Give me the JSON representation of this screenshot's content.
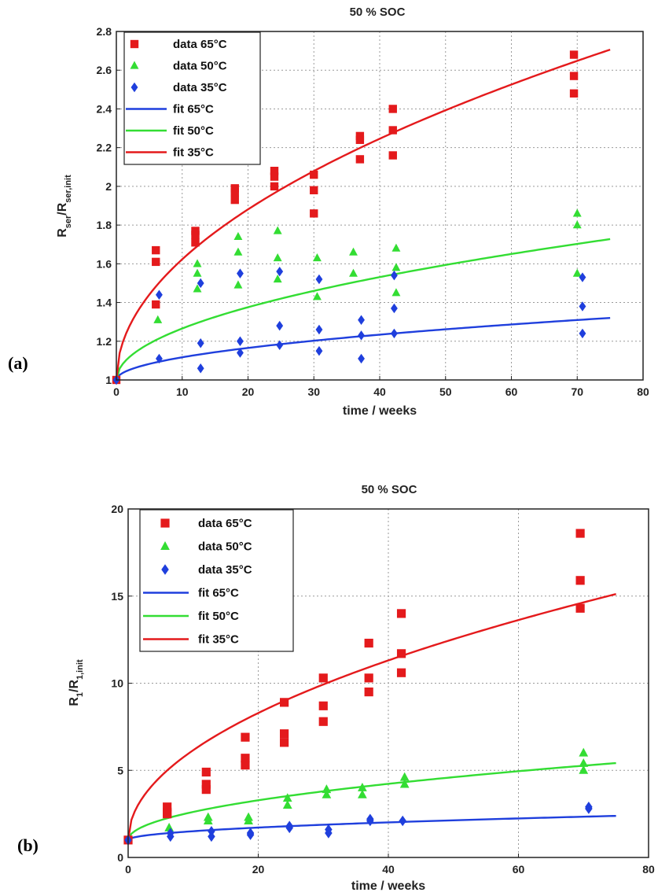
{
  "colors": {
    "red": "#e41a1c",
    "green": "#33dd33",
    "blue": "#1f3fdd"
  },
  "chart_data": [
    {
      "panel_label": "(a)",
      "type": "scatter",
      "title": "50 % SOC",
      "xlabel": "time / weeks",
      "ylabel_main": "R",
      "ylabel_sub1": "ser",
      "ylabel_mid": "/R",
      "ylabel_sub2": "ser,init",
      "xlim": [
        0,
        80
      ],
      "ylim": [
        1,
        2.8
      ],
      "xticks": [
        "0",
        "10",
        "20",
        "30",
        "40",
        "50",
        "60",
        "70",
        "80"
      ],
      "xtick_values": [
        0,
        10,
        20,
        30,
        40,
        50,
        60,
        70,
        80
      ],
      "yticks": [
        "1",
        "1.2",
        "1.4",
        "1.6",
        "1.8",
        "2",
        "2.2",
        "2.4",
        "2.6",
        "2.8"
      ],
      "ytick_values": [
        1,
        1.2,
        1.4,
        1.6,
        1.8,
        2,
        2.2,
        2.4,
        2.6,
        2.8
      ],
      "grid": true,
      "legend_position": "top-left",
      "legend": [
        "data 65°C",
        "data 50°C",
        "data 35°C",
        "fit 65°C",
        "fit 50°C",
        "fit 35°C"
      ],
      "series": [
        {
          "name": "data 65°C",
          "kind": "points",
          "marker": "square",
          "color": "red",
          "x": [
            0,
            6,
            6,
            6,
            12,
            12,
            12,
            18,
            18,
            18,
            24,
            24,
            24,
            30,
            30,
            30,
            37,
            37,
            37,
            42,
            42,
            42,
            69.5,
            69.5,
            69.5
          ],
          "y": [
            1.0,
            1.67,
            1.61,
            1.39,
            1.77,
            1.75,
            1.71,
            1.99,
            1.97,
            1.93,
            2.08,
            2.05,
            2.0,
            2.06,
            1.98,
            1.86,
            2.26,
            2.24,
            2.14,
            2.4,
            2.29,
            2.16,
            2.68,
            2.57,
            2.48
          ]
        },
        {
          "name": "data 50°C",
          "kind": "points",
          "marker": "triangle",
          "color": "green",
          "x": [
            6.3,
            12.3,
            12.3,
            12.3,
            18.5,
            18.5,
            18.5,
            24.5,
            24.5,
            24.5,
            30.5,
            30.5,
            36,
            36,
            42.5,
            42.5,
            42.5,
            70,
            70,
            70
          ],
          "y": [
            1.31,
            1.6,
            1.55,
            1.47,
            1.74,
            1.66,
            1.49,
            1.77,
            1.63,
            1.52,
            1.63,
            1.43,
            1.66,
            1.55,
            1.68,
            1.58,
            1.45,
            1.86,
            1.8,
            1.55
          ],
          "y_first_points": [
            1.31
          ]
        },
        {
          "name": "data 35°C",
          "kind": "points",
          "marker": "diamond",
          "color": "blue",
          "x": [
            0,
            6.5,
            6.5,
            12.8,
            12.8,
            12.8,
            18.8,
            18.8,
            18.8,
            24.8,
            24.8,
            24.8,
            30.8,
            30.8,
            30.8,
            37.2,
            37.2,
            37.2,
            42.2,
            42.2,
            42.2,
            70.8,
            70.8,
            70.8
          ],
          "y": [
            1.0,
            1.44,
            1.11,
            1.5,
            1.19,
            1.06,
            1.55,
            1.2,
            1.14,
            1.56,
            1.28,
            1.18,
            1.52,
            1.26,
            1.15,
            1.31,
            1.23,
            1.11,
            1.54,
            1.37,
            1.24,
            1.53,
            1.38,
            1.24
          ]
        },
        {
          "name": "fit 65°C",
          "kind": "fit",
          "color": "blue",
          "a": 0.037,
          "n": 0.5
        },
        {
          "name": "fit 50°C",
          "kind": "fit",
          "color": "green",
          "a": 0.084,
          "n": 0.5
        },
        {
          "name": "fit 35°C",
          "kind": "fit",
          "color": "red",
          "a": 0.197,
          "n": 0.5
        }
      ]
    },
    {
      "panel_label": "(b)",
      "type": "scatter",
      "title": "50 % SOC",
      "xlabel": "time / weeks",
      "ylabel_main": "R",
      "ylabel_sub1": "1",
      "ylabel_mid": "/R",
      "ylabel_sub2": "1,init",
      "xlim": [
        0,
        80
      ],
      "ylim": [
        0,
        20
      ],
      "xticks": [
        "0",
        "20",
        "40",
        "60",
        "80"
      ],
      "xtick_values": [
        0,
        20,
        40,
        60,
        80
      ],
      "yticks": [
        "0",
        "5",
        "10",
        "15",
        "20"
      ],
      "ytick_values": [
        0,
        5,
        10,
        15,
        20
      ],
      "grid": true,
      "legend_position": "top-left",
      "legend": [
        "data 65°C",
        "data 50°C",
        "data 35°C",
        "fit 65°C",
        "fit 50°C",
        "fit 35°C"
      ],
      "series": [
        {
          "name": "data 65°C",
          "kind": "points",
          "marker": "square",
          "color": "red",
          "x": [
            0,
            6,
            6,
            6,
            12,
            12,
            12,
            18,
            18,
            18,
            24,
            24,
            24,
            30,
            30,
            30,
            37,
            37,
            37,
            42,
            42,
            42,
            69.5,
            69.5,
            69.5
          ],
          "y": [
            1.0,
            2.9,
            2.6,
            2.5,
            4.9,
            4.2,
            3.9,
            6.9,
            5.7,
            5.3,
            8.9,
            7.1,
            6.6,
            10.3,
            8.7,
            7.8,
            12.3,
            10.3,
            9.5,
            14.0,
            11.7,
            10.6,
            18.6,
            15.9,
            14.3
          ]
        },
        {
          "name": "data 50°C",
          "kind": "points",
          "marker": "triangle",
          "color": "green",
          "x": [
            6.3,
            12.3,
            12.3,
            18.5,
            18.5,
            24.5,
            24.5,
            30.5,
            30.5,
            36,
            36,
            42.5,
            42.5,
            70,
            70,
            70
          ],
          "y": [
            1.7,
            2.3,
            2.1,
            2.3,
            2.1,
            3.4,
            3.0,
            3.9,
            3.6,
            4.0,
            3.6,
            4.6,
            4.2,
            6.0,
            5.4,
            5.0
          ]
        },
        {
          "name": "data 35°C",
          "kind": "points",
          "marker": "diamond",
          "color": "blue",
          "x": [
            0,
            6.5,
            6.5,
            12.8,
            12.8,
            18.8,
            18.8,
            24.8,
            24.8,
            30.8,
            30.8,
            37.2,
            37.2,
            42.2,
            70.8,
            70.8
          ],
          "y": [
            1.0,
            1.4,
            1.2,
            1.5,
            1.2,
            1.4,
            1.3,
            1.8,
            1.7,
            1.6,
            1.4,
            2.2,
            2.1,
            2.1,
            2.9,
            2.8
          ]
        },
        {
          "name": "fit 65°C",
          "kind": "fit",
          "color": "blue",
          "a": 0.16,
          "n": 0.5
        },
        {
          "name": "fit 50°C",
          "kind": "fit",
          "color": "green",
          "a": 0.51,
          "n": 0.5
        },
        {
          "name": "fit 35°C",
          "kind": "fit",
          "color": "red",
          "a": 1.63,
          "n": 0.5
        }
      ]
    }
  ]
}
